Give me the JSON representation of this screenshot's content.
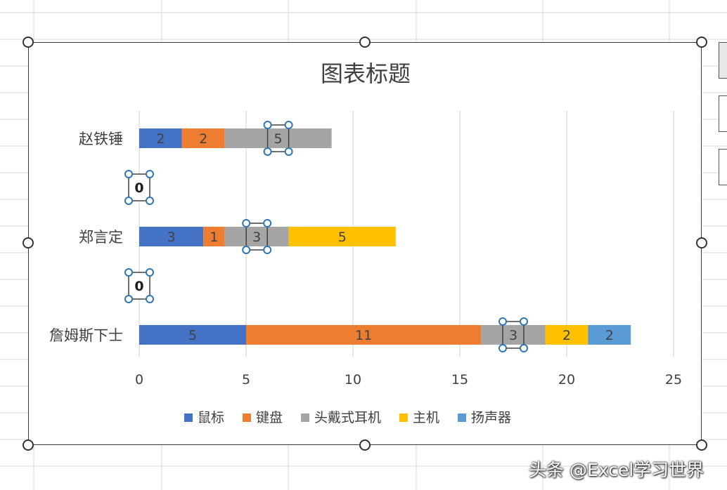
{
  "chart_data": {
    "type": "bar",
    "orientation": "horizontal",
    "stacked": true,
    "title": "图表标题",
    "categories": [
      "赵铁锤",
      "",
      "郑言定",
      "",
      "詹姆斯下士"
    ],
    "series": [
      {
        "name": "鼠标",
        "color": "#4472C4",
        "values": [
          2,
          0,
          3,
          0,
          5
        ]
      },
      {
        "name": "键盘",
        "color": "#ED7D31",
        "values": [
          2,
          0,
          1,
          0,
          11
        ]
      },
      {
        "name": "头戴式耳机",
        "color": "#A5A5A5",
        "values": [
          5,
          0,
          3,
          0,
          3
        ]
      },
      {
        "name": "主机",
        "color": "#FFC000",
        "values": [
          0,
          0,
          5,
          0,
          2
        ]
      },
      {
        "name": "扬声器",
        "color": "#5B9BD5",
        "values": [
          0,
          0,
          0,
          0,
          2
        ]
      }
    ],
    "xlim": [
      0,
      25
    ],
    "x_ticks": [
      "0",
      "5",
      "10",
      "15",
      "20",
      "25"
    ],
    "gridlines": "vertical",
    "legend_position": "bottom",
    "zero_labels": [
      "0",
      "0"
    ]
  },
  "watermark": "头条 @Excel学习世界"
}
